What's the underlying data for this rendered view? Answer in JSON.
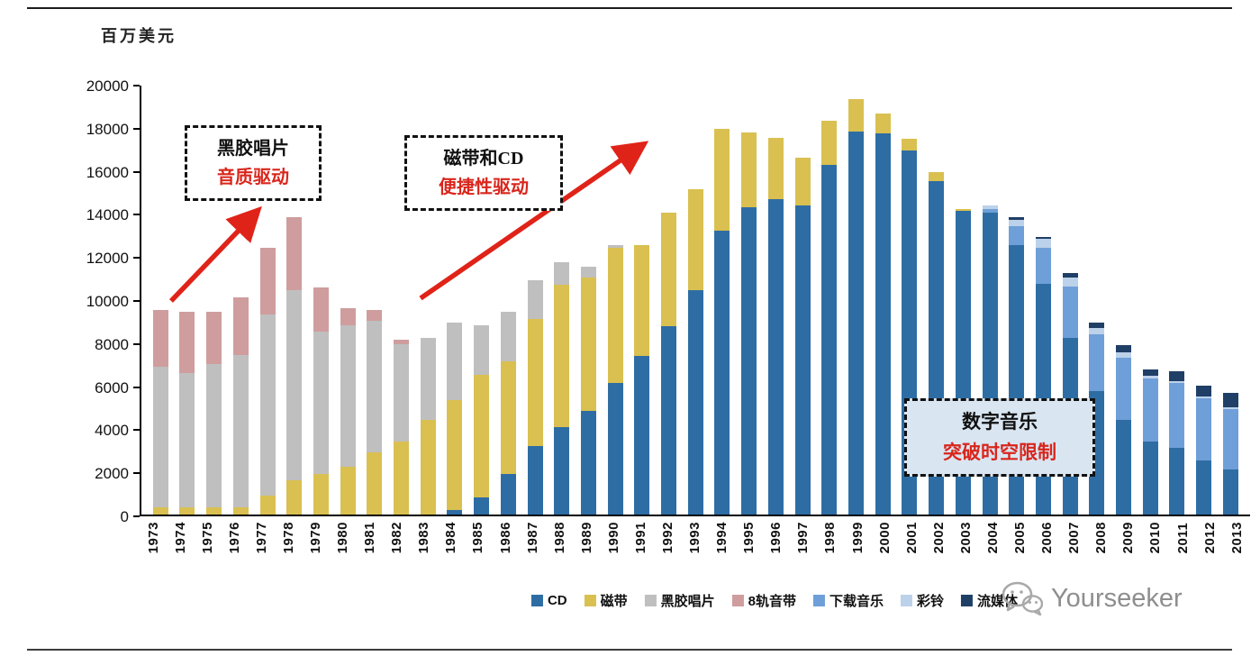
{
  "page": {
    "unit_label": "百万美元"
  },
  "annotations": [
    {
      "line1": "黑胶唱片",
      "line2": "音质驱动"
    },
    {
      "line1": "磁带和CD",
      "line2": "便捷性驱动"
    },
    {
      "line1": "数字音乐",
      "line2": "突破时空限制"
    }
  ],
  "colors": {
    "arrow_red": "#e02318",
    "annotation_red": "#d9261c",
    "callout_digital_bg": "#d9e6f2"
  },
  "watermark": {
    "icon": "wechat-icon",
    "text": "Yourseeker"
  },
  "chart_data": {
    "type": "bar",
    "stacked": true,
    "title": "",
    "ylabel": "百万美元",
    "xlabel": "",
    "ylim": [
      0,
      20000
    ],
    "ytick_step": 2000,
    "grid": false,
    "legend_position": "bottom",
    "categories": [
      "1973",
      "1974",
      "1975",
      "1976",
      "1977",
      "1978",
      "1979",
      "1980",
      "1981",
      "1982",
      "1983",
      "1984",
      "1985",
      "1986",
      "1987",
      "1988",
      "1989",
      "1990",
      "1991",
      "1992",
      "1993",
      "1994",
      "1995",
      "1996",
      "1997",
      "1998",
      "1999",
      "2000",
      "2001",
      "2002",
      "2003",
      "2004",
      "2005",
      "2006",
      "2007",
      "2008",
      "2009",
      "2010",
      "2011",
      "2012",
      "2013"
    ],
    "series": [
      {
        "name": "CD",
        "color": "#2e6da4",
        "values": [
          0,
          0,
          0,
          0,
          0,
          0,
          0,
          0,
          0,
          0,
          0,
          200,
          800,
          1900,
          3200,
          4050,
          4800,
          6100,
          7350,
          8750,
          10400,
          13200,
          14250,
          14650,
          14350,
          16250,
          17800,
          17700,
          16900,
          15500,
          14100,
          14000,
          12500,
          10700,
          8200,
          5750,
          4400,
          3400,
          3100,
          2500,
          2100
        ]
      },
      {
        "name": "磁带",
        "color": "#d9c050",
        "values": [
          350,
          350,
          350,
          350,
          900,
          1600,
          1900,
          2200,
          2900,
          3400,
          4400,
          5100,
          5700,
          5200,
          5900,
          6600,
          6200,
          6300,
          5150,
          5250,
          4700,
          4700,
          3500,
          2850,
          2200,
          2050,
          1500,
          900,
          550,
          400,
          100,
          0,
          0,
          0,
          0,
          0,
          0,
          0,
          0,
          0,
          0
        ]
      },
      {
        "name": "黑胶唱片",
        "color": "#bfbfbf",
        "values": [
          6500,
          6200,
          6650,
          7050,
          8400,
          8800,
          6600,
          6600,
          6100,
          4500,
          3800,
          3600,
          2300,
          2300,
          1800,
          1050,
          500,
          100,
          0,
          0,
          0,
          0,
          0,
          0,
          0,
          0,
          0,
          0,
          0,
          0,
          0,
          0,
          0,
          0,
          0,
          0,
          0,
          0,
          0,
          0,
          0
        ]
      },
      {
        "name": "8轨音带",
        "color": "#cf9d9d",
        "values": [
          2650,
          2850,
          2400,
          2700,
          3100,
          3400,
          2050,
          800,
          500,
          200,
          0,
          0,
          0,
          0,
          0,
          0,
          0,
          0,
          0,
          0,
          0,
          0,
          0,
          0,
          0,
          0,
          0,
          0,
          0,
          0,
          0,
          0,
          0,
          0,
          0,
          0,
          0,
          0,
          0,
          0,
          0
        ]
      },
      {
        "name": "下载音乐",
        "color": "#6f9fd8",
        "values": [
          0,
          0,
          0,
          0,
          0,
          0,
          0,
          0,
          0,
          0,
          0,
          0,
          0,
          0,
          0,
          0,
          0,
          0,
          0,
          0,
          0,
          0,
          0,
          0,
          0,
          0,
          0,
          0,
          0,
          0,
          0,
          200,
          900,
          1700,
          2400,
          2600,
          2900,
          2900,
          3000,
          2900,
          2800
        ]
      },
      {
        "name": "彩铃",
        "color": "#bcd1ea",
        "values": [
          0,
          0,
          0,
          0,
          0,
          0,
          0,
          0,
          0,
          0,
          0,
          0,
          0,
          0,
          0,
          0,
          0,
          0,
          0,
          0,
          0,
          0,
          0,
          0,
          0,
          0,
          0,
          0,
          0,
          0,
          0,
          150,
          300,
          400,
          400,
          300,
          250,
          150,
          100,
          100,
          100
        ]
      },
      {
        "name": "流媒体",
        "color": "#1f3f66",
        "values": [
          0,
          0,
          0,
          0,
          0,
          0,
          0,
          0,
          0,
          0,
          0,
          0,
          0,
          0,
          0,
          0,
          0,
          0,
          0,
          0,
          0,
          0,
          0,
          0,
          0,
          0,
          0,
          0,
          0,
          0,
          0,
          0,
          100,
          100,
          200,
          250,
          300,
          300,
          450,
          500,
          650
        ]
      }
    ]
  }
}
